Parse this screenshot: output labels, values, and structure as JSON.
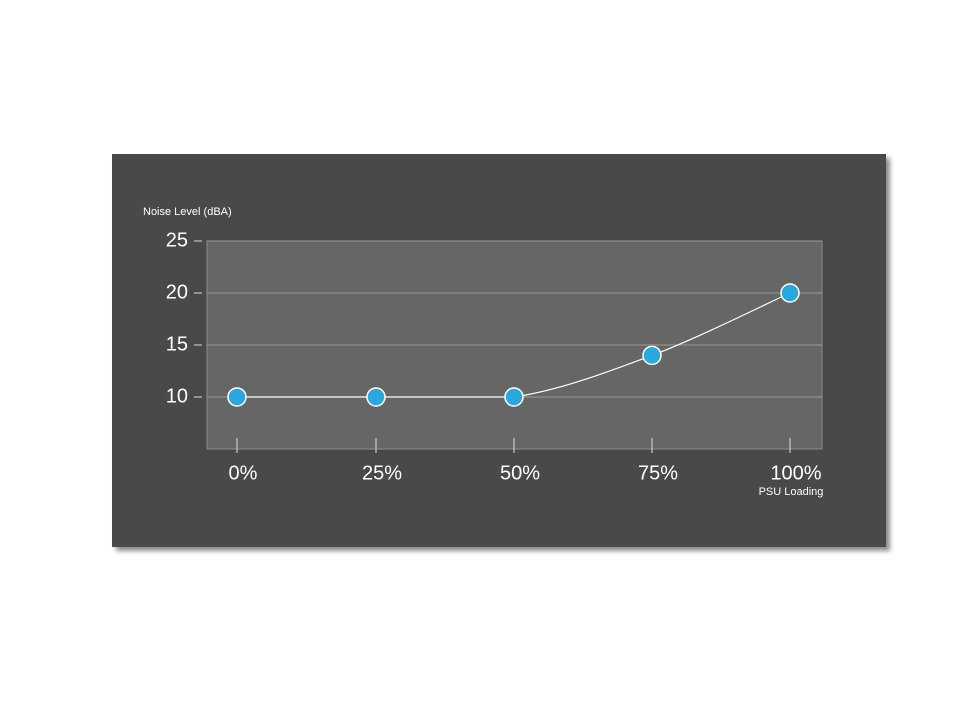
{
  "chart_data": {
    "type": "line",
    "ylabel": "Noise Level (dBA)",
    "xlabel": "PSU Loading",
    "categories": [
      "0%",
      "25%",
      "50%",
      "75%",
      "100%"
    ],
    "values": [
      10,
      10,
      10,
      14,
      20
    ],
    "color": "#29a8e0",
    "line_color": "#ffffff",
    "ylim": [
      5,
      25
    ],
    "yticks": [
      10,
      15,
      20,
      25
    ],
    "grid": true
  }
}
